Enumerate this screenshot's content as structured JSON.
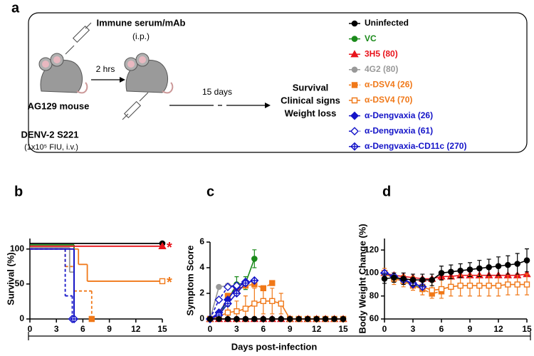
{
  "diagram": {
    "panel_label": "a",
    "treatment": "Immune serum/mAb",
    "treatment_route": "(i.p.)",
    "interval": "2 hrs",
    "mouse_label": "AG129 mouse",
    "virus": "DENV-2 S221",
    "virus_dose": "(1x10⁵ FIU, i.v.)",
    "follow_up": "15 days",
    "outcomes": [
      "Survival",
      "Clinical signs",
      "Weight loss"
    ]
  },
  "shared_x_label": "Days post-infection",
  "chart_data": [
    {
      "type": "step",
      "panel_label": "b",
      "y_label": "Survival (%)",
      "xlim": [
        0,
        15
      ],
      "xticks": [
        0,
        3,
        6,
        9,
        12,
        15
      ],
      "ylim": [
        0,
        115
      ],
      "yticks": [
        0,
        50,
        100
      ],
      "series": [
        {
          "name": "Uninfected",
          "color": "#000000",
          "marker": "circle",
          "dashed": false,
          "x": [
            0,
            15
          ],
          "values": [
            108,
            108
          ]
        },
        {
          "name": "VC",
          "color": "#1a8a1a",
          "marker": "circle",
          "dashed": false,
          "x": [
            0,
            5
          ],
          "values": [
            106,
            0
          ]
        },
        {
          "name": "3H5 (80)",
          "color": "#e8141c",
          "marker": "triangle",
          "dashed": false,
          "x": [
            0,
            15
          ],
          "values": [
            104,
            104
          ],
          "annotation": "*"
        },
        {
          "name": "4G2 (80)",
          "color": "#999999",
          "marker": "circle",
          "dashed": false,
          "x": [
            0,
            4.5,
            5
          ],
          "values": [
            102,
            67,
            0
          ]
        },
        {
          "name": "α-DSV4 (26)",
          "color": "#f07818",
          "marker": "square",
          "dashed": true,
          "x": [
            0,
            4,
            5,
            7
          ],
          "values": [
            100,
            75,
            40,
            0
          ]
        },
        {
          "name": "α-DSV4 (70)",
          "color": "#f07818",
          "marker": "square-open",
          "dashed": false,
          "x": [
            0,
            5.5,
            6.5,
            15
          ],
          "values": [
            100,
            78,
            54,
            54
          ],
          "annotation": "*"
        },
        {
          "name": "α-Dengvaxia (26)",
          "color": "#1414c8",
          "marker": "diamond",
          "dashed": false,
          "x": [
            0,
            5
          ],
          "values": [
            100,
            0
          ]
        },
        {
          "name": "α-Dengvaxia (61)",
          "color": "#1414c8",
          "marker": "diamond-open",
          "dashed": true,
          "x": [
            0,
            4,
            4.8
          ],
          "values": [
            100,
            33,
            0
          ]
        },
        {
          "name": "α-Dengvaxia-CD11c (270)",
          "color": "#1414c8",
          "marker": "diamond-cross",
          "dashed": false,
          "x": [
            0,
            5
          ],
          "values": [
            100,
            0
          ]
        }
      ]
    },
    {
      "type": "line",
      "panel_label": "c",
      "y_label": "Symptom Score",
      "xlim": [
        0,
        15
      ],
      "xticks": [
        0,
        3,
        6,
        9,
        12,
        15
      ],
      "ylim": [
        0,
        6
      ],
      "yticks": [
        0,
        2,
        4,
        6
      ],
      "series": [
        {
          "color": "#1a8a1a",
          "marker": "circle",
          "dashed": false,
          "x": [
            0,
            1,
            2,
            3,
            4,
            5
          ],
          "values": [
            0,
            0.3,
            1.5,
            2.7,
            2.8,
            4.7
          ],
          "errors": [
            0,
            0.2,
            0.5,
            0.6,
            0.5,
            0.7
          ]
        },
        {
          "color": "#e8141c",
          "marker": "triangle",
          "dashed": false,
          "x": [
            0,
            1,
            2,
            3,
            4,
            5,
            6,
            7,
            8,
            9,
            10,
            11,
            12,
            13,
            14,
            15
          ],
          "values": [
            0,
            0,
            0,
            0,
            0,
            0,
            0,
            0,
            0,
            0,
            0,
            0,
            0,
            0,
            0,
            0
          ]
        },
        {
          "color": "#999999",
          "marker": "circle",
          "dashed": false,
          "x": [
            0,
            1,
            2,
            3,
            4
          ],
          "values": [
            0,
            2.5,
            2.6,
            2.6,
            2.8
          ]
        },
        {
          "color": "#f07818",
          "marker": "square",
          "dashed": true,
          "x": [
            0,
            1,
            2,
            3,
            4,
            5,
            6,
            7
          ],
          "values": [
            0,
            0.3,
            1.8,
            2.3,
            2.6,
            2.7,
            2.4,
            2.8
          ]
        },
        {
          "color": "#f07818",
          "marker": "square-open",
          "dashed": false,
          "x": [
            0,
            1,
            2,
            3,
            4,
            5,
            6,
            7,
            8,
            9,
            10,
            11,
            12,
            13,
            14,
            15
          ],
          "values": [
            0,
            0.2,
            0.5,
            0.6,
            0.8,
            1.2,
            1.4,
            1.4,
            1.2,
            0,
            0,
            0,
            0,
            0,
            0,
            0
          ],
          "errors": [
            0,
            0.3,
            0.6,
            0.8,
            1,
            1.2,
            1,
            1,
            0.8,
            0,
            0,
            0,
            0,
            0,
            0,
            0
          ]
        },
        {
          "color": "#1414c8",
          "marker": "diamond",
          "dashed": false,
          "x": [
            0,
            1,
            2,
            3,
            4,
            5
          ],
          "values": [
            0,
            0.5,
            1.5,
            2.5,
            2.8,
            3.0
          ]
        },
        {
          "color": "#1414c8",
          "marker": "diamond-open",
          "dashed": true,
          "x": [
            0,
            1,
            2,
            3,
            4
          ],
          "values": [
            0,
            1.5,
            2.5,
            2.6,
            2.9
          ]
        },
        {
          "color": "#1414c8",
          "marker": "diamond-cross",
          "dashed": false,
          "x": [
            0,
            1,
            2,
            3,
            4,
            5
          ],
          "values": [
            0,
            0.3,
            1.2,
            2.0,
            2.8,
            3.0
          ]
        },
        {
          "color": "#000000",
          "marker": "circle",
          "dashed": false,
          "x": [
            0,
            1,
            2,
            3,
            4,
            5,
            6,
            7,
            8,
            9,
            10,
            11,
            12,
            13,
            14,
            15
          ],
          "values": [
            0,
            0,
            0,
            0,
            0,
            0,
            0,
            0,
            0,
            0,
            0,
            0,
            0,
            0,
            0,
            0
          ]
        }
      ]
    },
    {
      "type": "line",
      "panel_label": "d",
      "y_label": "Body Weight Change (%)",
      "xlim": [
        0,
        15
      ],
      "xticks": [
        0,
        3,
        6,
        9,
        12,
        15
      ],
      "ylim": [
        60,
        130
      ],
      "yticks": [
        60,
        80,
        100,
        120
      ],
      "series": [
        {
          "color": "#e8141c",
          "marker": "triangle",
          "dashed": false,
          "x": [
            0,
            1,
            2,
            3,
            4,
            5,
            6,
            7,
            8,
            9,
            10,
            11,
            12,
            13,
            14,
            15
          ],
          "values": [
            100,
            98,
            97,
            96,
            95,
            95,
            97,
            97,
            98,
            98,
            98,
            98,
            98,
            98,
            98,
            99
          ]
        },
        {
          "color": "#999999",
          "marker": "circle",
          "dashed": false,
          "x": [
            0,
            1,
            2,
            3,
            4
          ],
          "values": [
            100,
            97,
            94,
            91,
            88
          ]
        },
        {
          "color": "#1a8a1a",
          "marker": "circle",
          "dashed": false,
          "x": [
            0,
            1,
            2,
            3,
            4
          ],
          "values": [
            100,
            96,
            93,
            90,
            86
          ]
        },
        {
          "color": "#f07818",
          "marker": "square",
          "dashed": true,
          "x": [
            0,
            1,
            2,
            3,
            4,
            5,
            6
          ],
          "values": [
            100,
            96,
            93,
            89,
            86,
            82,
            84
          ]
        },
        {
          "color": "#f07818",
          "marker": "square-open",
          "dashed": false,
          "x": [
            0,
            1,
            2,
            3,
            4,
            5,
            6,
            7,
            8,
            9,
            10,
            11,
            12,
            13,
            14,
            15
          ],
          "values": [
            100,
            95,
            93,
            91,
            88,
            85,
            86,
            88,
            89,
            89,
            89,
            89,
            89,
            90,
            90,
            90
          ],
          "errors": [
            4,
            5,
            5,
            6,
            7,
            7,
            8,
            8,
            9,
            9,
            9,
            9,
            9,
            9,
            9,
            9
          ]
        },
        {
          "color": "#1414c8",
          "marker": "diamond",
          "dashed": false,
          "x": [
            0,
            1,
            2,
            3,
            4
          ],
          "values": [
            100,
            97,
            94,
            91,
            88
          ]
        },
        {
          "color": "#1414c8",
          "marker": "diamond-open",
          "dashed": true,
          "x": [
            0,
            1,
            2,
            3
          ],
          "values": [
            100,
            97,
            94,
            90
          ]
        },
        {
          "color": "#1414c8",
          "marker": "diamond-cross",
          "dashed": false,
          "x": [
            0,
            1,
            2,
            3,
            4
          ],
          "values": [
            100,
            97,
            94,
            91,
            88
          ]
        },
        {
          "color": "#000000",
          "marker": "circle",
          "dashed": false,
          "x": [
            0,
            1,
            2,
            3,
            4,
            5,
            6,
            7,
            8,
            9,
            10,
            11,
            12,
            13,
            14,
            15
          ],
          "values": [
            95,
            96,
            95,
            94,
            94,
            94,
            100,
            101,
            102,
            103,
            104,
            105,
            106,
            107,
            108,
            111
          ],
          "errors": [
            4,
            4,
            5,
            5,
            5,
            5,
            6,
            6,
            6,
            6,
            7,
            7,
            8,
            8,
            9,
            10
          ]
        }
      ]
    }
  ]
}
